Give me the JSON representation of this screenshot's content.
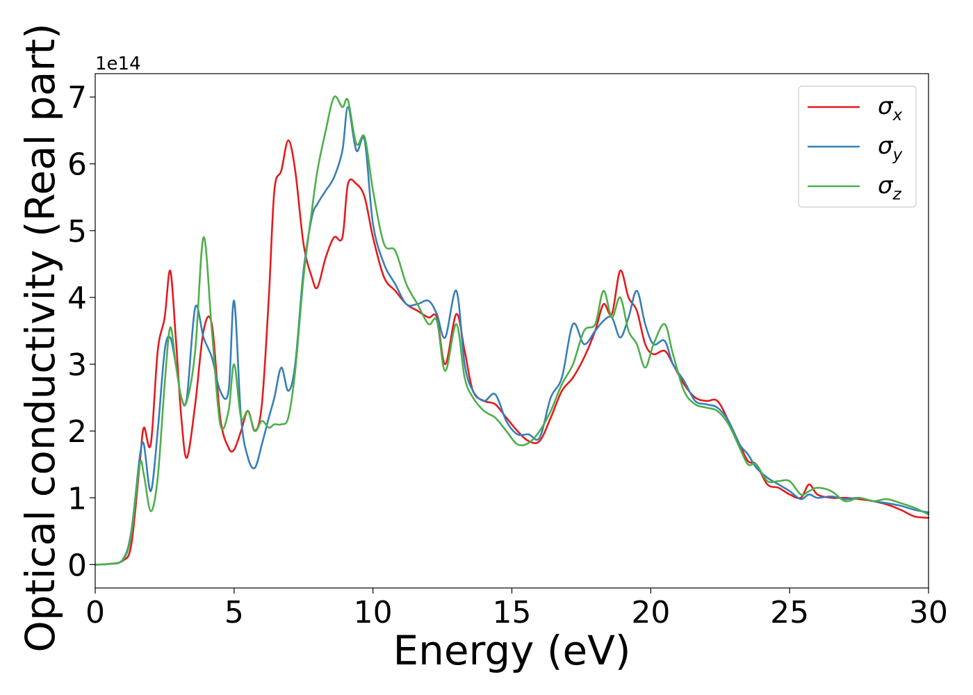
{
  "chart_data": {
    "type": "line",
    "title": "",
    "xlabel": "Energy (eV)",
    "ylabel": "Optical conductivity (Real part)",
    "y_offset_label": "1e14",
    "xlim": [
      0,
      30
    ],
    "ylim": [
      -0.35,
      7.35
    ],
    "xticks": [
      0,
      5,
      10,
      15,
      20,
      25,
      30
    ],
    "xtick_labels": [
      "0",
      "5",
      "10",
      "15",
      "20",
      "25",
      "30"
    ],
    "yticks": [
      0,
      1,
      2,
      3,
      4,
      5,
      6,
      7
    ],
    "ytick_labels": [
      "0",
      "1",
      "2",
      "3",
      "4",
      "5",
      "6",
      "7"
    ],
    "grid": false,
    "legend_position": "top-right",
    "series": [
      {
        "name": "σx",
        "symbol": "σ",
        "subscript": "x",
        "color": "#e41a1c",
        "x": [
          0,
          0.5,
          1.0,
          1.3,
          1.6,
          1.75,
          2.0,
          2.25,
          2.5,
          2.7,
          2.9,
          3.1,
          3.3,
          3.6,
          3.9,
          4.2,
          4.5,
          4.8,
          5.0,
          5.25,
          5.5,
          5.75,
          6.0,
          6.25,
          6.45,
          6.7,
          6.95,
          7.2,
          7.5,
          7.8,
          8.0,
          8.3,
          8.6,
          8.9,
          9.1,
          9.4,
          9.7,
          10.0,
          10.4,
          10.8,
          11.2,
          11.6,
          12.0,
          12.3,
          12.6,
          13.0,
          13.3,
          13.6,
          14.0,
          14.4,
          14.8,
          15.2,
          15.6,
          16.0,
          16.4,
          16.8,
          17.2,
          17.6,
          18.0,
          18.3,
          18.6,
          18.9,
          19.2,
          19.5,
          19.8,
          20.1,
          20.5,
          20.8,
          21.2,
          21.6,
          22.0,
          22.4,
          22.8,
          23.2,
          23.5,
          23.8,
          24.2,
          24.6,
          25.0,
          25.4,
          25.7,
          26.0,
          26.5,
          27.0,
          27.5,
          28.0,
          28.5,
          29.0,
          29.5,
          30.0
        ],
        "y": [
          0,
          0.01,
          0.06,
          0.3,
          1.5,
          2.05,
          1.8,
          3.2,
          3.7,
          4.4,
          3.4,
          2.2,
          1.6,
          2.4,
          3.5,
          3.6,
          2.2,
          1.75,
          1.72,
          2.0,
          2.3,
          2.0,
          2.4,
          4.0,
          5.6,
          5.9,
          6.35,
          5.9,
          4.8,
          4.3,
          4.15,
          4.6,
          4.9,
          4.9,
          5.7,
          5.7,
          5.5,
          4.9,
          4.3,
          4.1,
          3.9,
          3.8,
          3.7,
          3.7,
          3.0,
          3.75,
          3.2,
          2.6,
          2.45,
          2.4,
          2.2,
          2.0,
          1.85,
          1.85,
          2.2,
          2.6,
          2.8,
          3.1,
          3.5,
          3.9,
          3.75,
          4.4,
          4.0,
          3.8,
          3.3,
          3.15,
          3.2,
          3.0,
          2.7,
          2.5,
          2.45,
          2.45,
          2.15,
          1.8,
          1.55,
          1.5,
          1.2,
          1.15,
          1.05,
          1.0,
          1.2,
          1.05,
          1.0,
          1.0,
          0.98,
          0.95,
          0.9,
          0.82,
          0.72,
          0.7
        ]
      },
      {
        "name": "σy",
        "symbol": "σ",
        "subscript": "y",
        "color": "#377eb8",
        "x": [
          0,
          0.5,
          1.0,
          1.3,
          1.6,
          1.75,
          2.0,
          2.25,
          2.5,
          2.7,
          2.9,
          3.1,
          3.3,
          3.6,
          3.9,
          4.2,
          4.5,
          4.8,
          5.0,
          5.25,
          5.5,
          5.75,
          6.0,
          6.25,
          6.45,
          6.7,
          6.95,
          7.2,
          7.5,
          7.8,
          8.0,
          8.3,
          8.6,
          8.9,
          9.1,
          9.4,
          9.7,
          10.0,
          10.4,
          10.8,
          11.2,
          11.6,
          12.0,
          12.3,
          12.6,
          13.0,
          13.3,
          13.6,
          14.0,
          14.4,
          14.8,
          15.2,
          15.6,
          16.0,
          16.4,
          16.8,
          17.2,
          17.6,
          18.0,
          18.3,
          18.6,
          18.9,
          19.2,
          19.5,
          19.8,
          20.1,
          20.5,
          20.8,
          21.2,
          21.6,
          22.0,
          22.4,
          22.8,
          23.2,
          23.5,
          23.8,
          24.2,
          24.6,
          25.0,
          25.4,
          25.7,
          26.0,
          26.5,
          27.0,
          27.5,
          28.0,
          28.5,
          29.0,
          29.5,
          30.0
        ],
        "y": [
          0,
          0.01,
          0.08,
          0.5,
          1.6,
          1.8,
          1.1,
          2.0,
          3.2,
          3.4,
          3.0,
          2.5,
          2.5,
          3.85,
          3.4,
          3.1,
          2.6,
          2.6,
          3.95,
          2.2,
          1.6,
          1.45,
          1.8,
          2.2,
          2.5,
          2.95,
          2.6,
          3.0,
          4.4,
          5.2,
          5.4,
          5.6,
          5.8,
          6.2,
          6.85,
          6.2,
          6.35,
          5.1,
          4.5,
          4.2,
          3.9,
          3.9,
          3.95,
          3.75,
          3.4,
          4.1,
          3.0,
          2.6,
          2.45,
          2.55,
          2.15,
          1.95,
          1.95,
          1.9,
          2.5,
          2.8,
          3.6,
          3.3,
          3.5,
          3.65,
          3.7,
          3.4,
          3.7,
          4.1,
          3.6,
          3.3,
          3.35,
          3.0,
          2.75,
          2.45,
          2.4,
          2.35,
          2.15,
          1.8,
          1.65,
          1.45,
          1.3,
          1.2,
          1.1,
          0.98,
          1.05,
          1.0,
          1.02,
          0.98,
          1.0,
          0.95,
          0.92,
          0.88,
          0.82,
          0.78
        ]
      },
      {
        "name": "σz",
        "symbol": "σ",
        "subscript": "z",
        "color": "#4daf4a",
        "x": [
          0,
          0.5,
          1.0,
          1.3,
          1.6,
          1.75,
          2.0,
          2.25,
          2.5,
          2.7,
          2.9,
          3.1,
          3.3,
          3.6,
          3.9,
          4.2,
          4.5,
          4.8,
          5.0,
          5.25,
          5.5,
          5.75,
          6.0,
          6.25,
          6.45,
          6.7,
          6.95,
          7.2,
          7.5,
          7.8,
          8.0,
          8.3,
          8.6,
          8.9,
          9.1,
          9.4,
          9.7,
          10.0,
          10.4,
          10.8,
          11.2,
          11.6,
          12.0,
          12.3,
          12.6,
          13.0,
          13.3,
          13.6,
          14.0,
          14.4,
          14.8,
          15.2,
          15.6,
          16.0,
          16.4,
          16.8,
          17.2,
          17.6,
          18.0,
          18.3,
          18.6,
          18.9,
          19.2,
          19.5,
          19.8,
          20.1,
          20.5,
          20.8,
          21.2,
          21.6,
          22.0,
          22.4,
          22.8,
          23.2,
          23.5,
          23.8,
          24.2,
          24.6,
          25.0,
          25.4,
          25.7,
          26.0,
          26.5,
          27.0,
          27.5,
          28.0,
          28.5,
          29.0,
          29.5,
          30.0
        ],
        "y": [
          0,
          0.01,
          0.07,
          0.45,
          1.5,
          1.35,
          0.8,
          1.3,
          2.7,
          3.55,
          3.0,
          2.5,
          2.45,
          3.2,
          4.9,
          3.5,
          2.1,
          2.3,
          3.0,
          2.2,
          2.3,
          2.0,
          2.15,
          2.05,
          2.1,
          2.1,
          2.2,
          2.9,
          4.3,
          5.3,
          5.9,
          6.5,
          7.0,
          6.85,
          6.95,
          6.3,
          6.4,
          5.6,
          4.8,
          4.7,
          4.2,
          3.9,
          3.6,
          3.65,
          2.9,
          3.6,
          2.8,
          2.5,
          2.3,
          2.2,
          2.0,
          1.8,
          1.82,
          2.0,
          2.3,
          2.7,
          3.0,
          3.5,
          3.6,
          4.1,
          3.7,
          4.0,
          3.5,
          3.3,
          2.95,
          3.3,
          3.6,
          3.15,
          2.6,
          2.4,
          2.35,
          2.3,
          2.1,
          1.75,
          1.5,
          1.5,
          1.25,
          1.25,
          1.25,
          1.05,
          1.1,
          1.15,
          1.1,
          0.95,
          1.0,
          0.95,
          0.98,
          0.92,
          0.85,
          0.75
        ]
      }
    ]
  }
}
